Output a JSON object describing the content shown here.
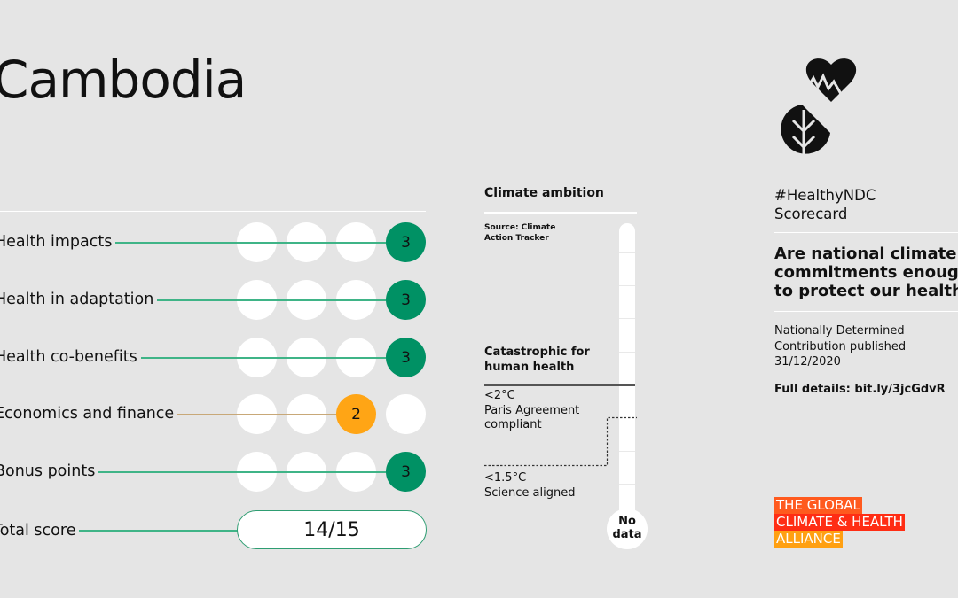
{
  "title": "Cambodia",
  "rows": [
    {
      "label": "Health impacts",
      "score": "3",
      "filled_position": 4,
      "color": "#009164",
      "line_color": "#3fb487"
    },
    {
      "label": "Health in adaptation",
      "score": "3",
      "filled_position": 4,
      "color": "#009164",
      "line_color": "#3fb487"
    },
    {
      "label": "Health co-benefits",
      "score": "3",
      "filled_position": 4,
      "color": "#009164",
      "line_color": "#3fb487"
    },
    {
      "label": "Economics and finance",
      "score": "2",
      "filled_position": 3,
      "color": "#ffa515",
      "line_color": "#c8a878"
    },
    {
      "label": "Bonus points",
      "score": "3",
      "filled_position": 4,
      "color": "#009164",
      "line_color": "#3fb487"
    }
  ],
  "total": {
    "label": "Total score",
    "value": "14/15",
    "line_color": "#3fb487"
  },
  "climate": {
    "title": "Climate ambition",
    "source": "Source: Climate Action Tracker",
    "catastrophic": "Catastrophic for human health",
    "two_deg": "<2°C",
    "paris": "Paris Agreement compliant",
    "onefive": "<1.5°C",
    "science": "Science aligned",
    "no_data": "No data"
  },
  "side": {
    "hashtag": "#HealthyNDC",
    "scorecard": "Scorecard",
    "question": "Are national climate commitments enough to protect our health?",
    "q_lines": [
      "Are national climate",
      "commitments enough",
      "to protect our health?"
    ],
    "ndc_lines": [
      "Nationally Determined",
      "Contribution published",
      "31/12/2020"
    ],
    "full_details": "Full details: bit.ly/3jcGdvR"
  },
  "brand": {
    "lines": [
      "THE GLOBAL",
      "CLIMATE & HEALTH",
      "ALLIANCE"
    ],
    "colors": [
      "#ff5a1e",
      "#ff2d14",
      "#ffa012"
    ]
  }
}
